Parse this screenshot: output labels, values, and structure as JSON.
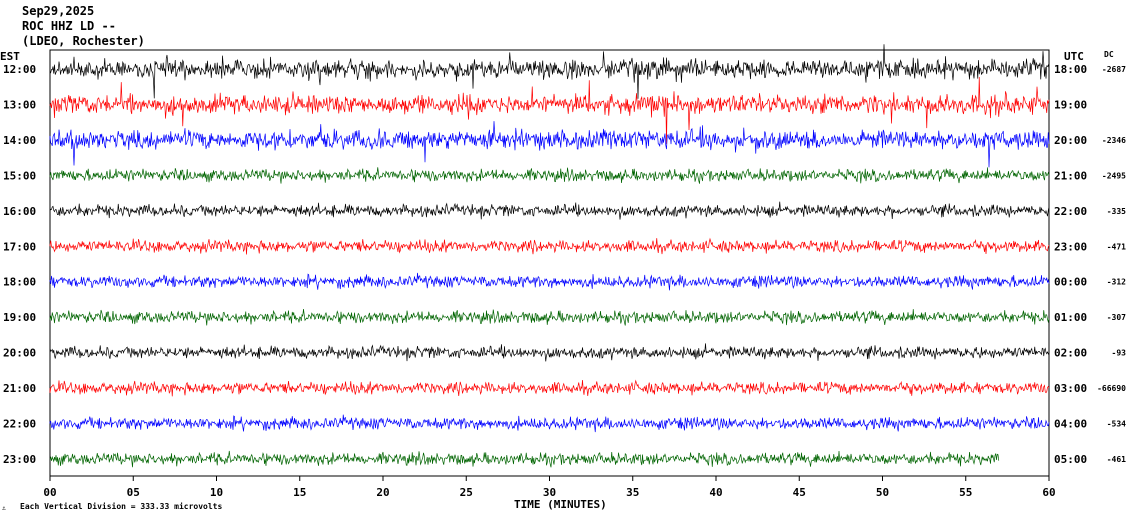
{
  "header": {
    "date": "Sep29,2025",
    "station": "ROC HHZ LD --",
    "location": "(LDEO, Rochester)"
  },
  "left_zone_label": "EST",
  "right_zone_label": "UTC",
  "dc_label": "DC",
  "footer": {
    "scale_note": "Each Vertical Division =  333.33 microvolts",
    "xlabel": "TIME (MINUTES)"
  },
  "colors": {
    "black": "#000000",
    "red": "#ff0000",
    "blue": "#0000ff",
    "green": "#006400"
  },
  "chart_data": {
    "type": "line",
    "title": "ROC HHZ LD --",
    "xlabel": "TIME (MINUTES)",
    "xlim": [
      0,
      60
    ],
    "x_ticks": [
      "00",
      "05",
      "10",
      "15",
      "20",
      "25",
      "30",
      "35",
      "40",
      "45",
      "50",
      "55",
      "60"
    ],
    "rows": [
      {
        "est": "12:00",
        "utc": "18:00",
        "dc": "-2687",
        "color": "black",
        "level": "high"
      },
      {
        "est": "13:00",
        "utc": "19:00",
        "dc": "",
        "color": "red",
        "level": "high"
      },
      {
        "est": "14:00",
        "utc": "20:00",
        "dc": "-2346",
        "color": "blue",
        "level": "high"
      },
      {
        "est": "15:00",
        "utc": "21:00",
        "dc": "-2495",
        "color": "green",
        "level": "medium"
      },
      {
        "est": "16:00",
        "utc": "22:00",
        "dc": "-335",
        "color": "black",
        "level": "medium"
      },
      {
        "est": "17:00",
        "utc": "23:00",
        "dc": "-471",
        "color": "red",
        "level": "medium"
      },
      {
        "est": "18:00",
        "utc": "00:00",
        "dc": "-312",
        "color": "blue",
        "level": "medium"
      },
      {
        "est": "19:00",
        "utc": "01:00",
        "dc": "-307",
        "color": "green",
        "level": "medium"
      },
      {
        "est": "20:00",
        "utc": "02:00",
        "dc": "-93",
        "color": "black",
        "level": "medium"
      },
      {
        "est": "21:00",
        "utc": "03:00",
        "dc": "-66690",
        "color": "red",
        "level": "medium"
      },
      {
        "est": "22:00",
        "utc": "04:00",
        "dc": "-534",
        "color": "blue",
        "level": "medium"
      },
      {
        "est": "23:00",
        "utc": "05:00",
        "dc": "-461",
        "color": "green",
        "level": "medium",
        "end_minute": 57
      }
    ]
  }
}
